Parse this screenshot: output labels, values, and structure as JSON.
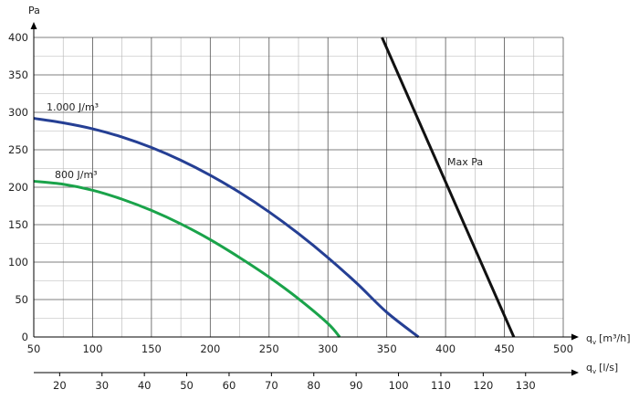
{
  "chart_data": {
    "type": "line",
    "title": "",
    "ylabel": "Pa",
    "xlabel": "qv [m³/h]",
    "xlabel_base": "q",
    "xlabel_sub": "v",
    "xlabel_unit": "[m³/h]",
    "x2label": "qv [l/s]",
    "x2label_base": "q",
    "x2label_sub": "v",
    "x2label_unit": "[l/s]",
    "xlim": [
      50,
      500
    ],
    "ylim": [
      0,
      400
    ],
    "x_ticks": [
      50,
      100,
      150,
      200,
      250,
      300,
      350,
      400,
      450,
      500
    ],
    "y_ticks": [
      0,
      50,
      100,
      150,
      200,
      250,
      300,
      350,
      400
    ],
    "x2_ticks": [
      20,
      30,
      40,
      50,
      60,
      70,
      80,
      90,
      100,
      110,
      120,
      130
    ],
    "x2_per_x": 3.6,
    "grid": true,
    "series": [
      {
        "name": "1.000 J/m³",
        "color": "#253f94",
        "x": [
          50,
          75,
          100,
          125,
          150,
          175,
          200,
          225,
          250,
          275,
          300,
          325,
          350,
          377
        ],
        "y": [
          292,
          286,
          278,
          267,
          253,
          236,
          216,
          193,
          167,
          138,
          106,
          71,
          33,
          0
        ]
      },
      {
        "name": "800 J/m³",
        "color": "#1aa34a",
        "x": [
          50,
          75,
          100,
          125,
          150,
          175,
          200,
          225,
          250,
          275,
          300,
          310
        ],
        "y": [
          208,
          204,
          196,
          184,
          169,
          151,
          130,
          106,
          80,
          51,
          18,
          0
        ]
      },
      {
        "name": "Max Pa",
        "color": "#111111",
        "x": [
          346,
          458
        ],
        "y": [
          400,
          0
        ]
      }
    ]
  }
}
